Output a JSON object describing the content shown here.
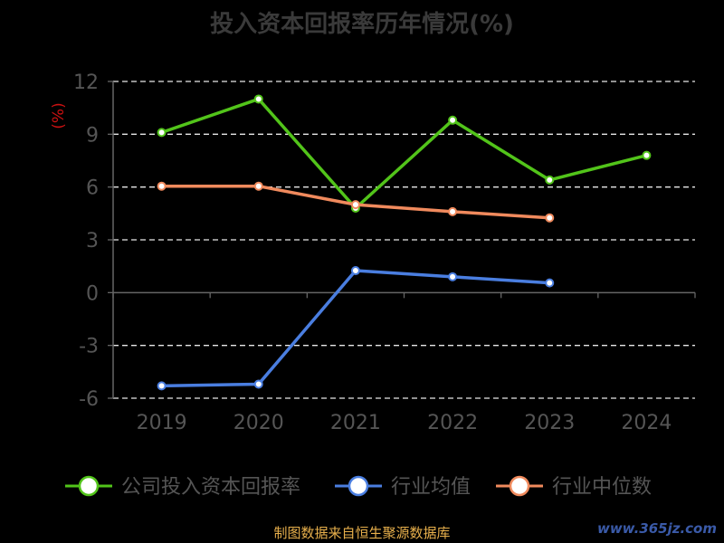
{
  "title": "投入资本回报率历年情况(%)",
  "unit_label": "(%)",
  "source": "制图数据来自恒生聚源数据库",
  "watermark": "www.365jz.com",
  "chart_data": {
    "type": "line",
    "categories": [
      "2019",
      "2020",
      "2021",
      "2022",
      "2023",
      "2024"
    ],
    "ylim": [
      -6,
      12
    ],
    "yticks": [
      -6,
      -3,
      0,
      3,
      6,
      9,
      12
    ],
    "grid": true,
    "legend_position": "bottom",
    "series": [
      {
        "name": "公司投入资本回报率",
        "color": "#52c41a",
        "values": [
          9.1,
          11.0,
          4.8,
          9.8,
          6.4,
          7.8
        ]
      },
      {
        "name": "行业均值",
        "color": "#4a7ee0",
        "values": [
          -5.3,
          -5.2,
          1.25,
          0.9,
          0.55,
          null
        ]
      },
      {
        "name": "行业中位数",
        "color": "#f08a5d",
        "values": [
          6.05,
          6.05,
          5.0,
          4.6,
          4.25,
          null
        ]
      }
    ]
  }
}
